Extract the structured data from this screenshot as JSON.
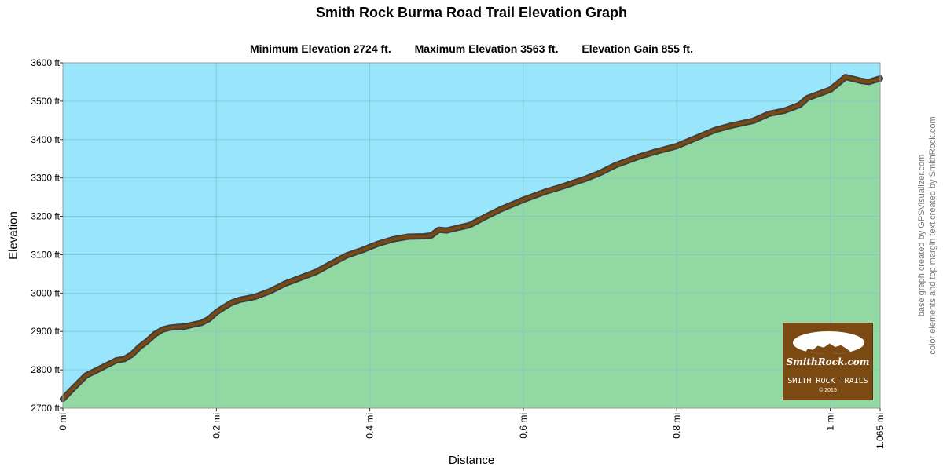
{
  "title": "Smith Rock Burma Road Trail Elevation Graph",
  "stats": {
    "min": "Minimum Elevation  2724 ft.",
    "max": "Maximum Elevation 3563 ft.",
    "gain": "Elevation Gain 855 ft."
  },
  "credits": {
    "line1": "base graph created by GPSVisualizer.com",
    "line2": "color elements and top margin text created by SmithRock.com"
  },
  "logo": {
    "name": "SmithRock.com",
    "subtitle": "SMITH ROCK TRAILS",
    "copyright": "© 2015"
  },
  "colors": {
    "sky": "#99e5fc",
    "ground": "#92d8a3",
    "trail": "#7a4a12",
    "trail_outline": "#3f3f3f",
    "grid": "#7fc7d0"
  },
  "chart_data": {
    "type": "area",
    "title": "Smith Rock Burma Road Trail Elevation Graph",
    "xlabel": "Distance",
    "ylabel": "Elevation",
    "xlim": [
      0,
      1.065
    ],
    "ylim": [
      2700,
      3600
    ],
    "grid": true,
    "x_ticks": [
      {
        "value": 0,
        "label": "0 mi"
      },
      {
        "value": 0.2,
        "label": "0.2 mi"
      },
      {
        "value": 0.4,
        "label": "0.4 mi"
      },
      {
        "value": 0.6,
        "label": "0.6 mi"
      },
      {
        "value": 0.8,
        "label": "0.8 mi"
      },
      {
        "value": 1.0,
        "label": "1 mi"
      },
      {
        "value": 1.065,
        "label": "1.065 mi"
      }
    ],
    "y_ticks": [
      {
        "value": 2700,
        "label": "2700 ft"
      },
      {
        "value": 2800,
        "label": "2800 ft"
      },
      {
        "value": 2900,
        "label": "2900 ft"
      },
      {
        "value": 3000,
        "label": "3000 ft"
      },
      {
        "value": 3100,
        "label": "3100 ft"
      },
      {
        "value": 3200,
        "label": "3200 ft"
      },
      {
        "value": 3300,
        "label": "3300 ft"
      },
      {
        "value": 3400,
        "label": "3400 ft"
      },
      {
        "value": 3500,
        "label": "3500 ft"
      },
      {
        "value": 3600,
        "label": "3600 ft"
      }
    ],
    "x": [
      0,
      0.01,
      0.02,
      0.03,
      0.04,
      0.05,
      0.06,
      0.07,
      0.08,
      0.09,
      0.1,
      0.11,
      0.12,
      0.13,
      0.14,
      0.15,
      0.16,
      0.17,
      0.18,
      0.19,
      0.2,
      0.21,
      0.22,
      0.23,
      0.25,
      0.27,
      0.29,
      0.31,
      0.33,
      0.35,
      0.37,
      0.39,
      0.41,
      0.43,
      0.45,
      0.47,
      0.48,
      0.49,
      0.5,
      0.51,
      0.53,
      0.55,
      0.57,
      0.6,
      0.63,
      0.65,
      0.68,
      0.7,
      0.72,
      0.75,
      0.77,
      0.8,
      0.82,
      0.85,
      0.87,
      0.9,
      0.92,
      0.94,
      0.96,
      0.97,
      1.0,
      1.01,
      1.02,
      1.03,
      1.04,
      1.05,
      1.065
    ],
    "y": [
      2724,
      2745,
      2765,
      2785,
      2795,
      2805,
      2815,
      2825,
      2828,
      2840,
      2860,
      2875,
      2893,
      2905,
      2910,
      2912,
      2913,
      2918,
      2922,
      2932,
      2950,
      2963,
      2975,
      2982,
      2990,
      3005,
      3025,
      3040,
      3055,
      3077,
      3098,
      3112,
      3128,
      3140,
      3147,
      3148,
      3150,
      3165,
      3163,
      3168,
      3177,
      3198,
      3218,
      3243,
      3265,
      3277,
      3297,
      3313,
      3333,
      3355,
      3367,
      3383,
      3400,
      3425,
      3436,
      3449,
      3467,
      3475,
      3490,
      3508,
      3530,
      3546,
      3563,
      3558,
      3553,
      3550,
      3559
    ]
  }
}
